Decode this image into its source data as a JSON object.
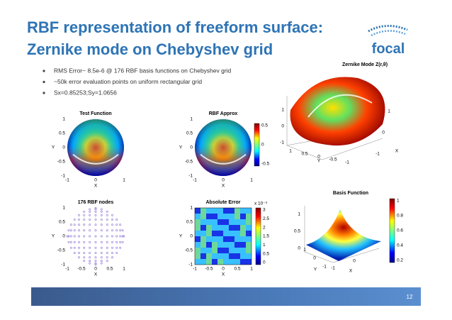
{
  "header": {
    "title_lines": [
      "RBF representation of freeform surface:",
      "Zernike mode on Chebyshev grid"
    ],
    "logo": "focal"
  },
  "bullets": [
    "RMS Error~ 8.5e-6 @ 176  RBF basis functions on Chebyshev  grid",
    "~50k error evaluation points on uniform rectangular  grid",
    "Sx=0.85253;Sy=1.0656"
  ],
  "panels": [
    {
      "kind": "disk",
      "title": "Test Function",
      "xlabel": "X",
      "ylabel": "Y",
      "xticks": [
        "-1",
        "0",
        "1"
      ],
      "yticks": [
        "1",
        "0.5",
        "0",
        "-0.5",
        "-1"
      ]
    },
    {
      "kind": "disk",
      "title": "RBF Approx",
      "xlabel": "X",
      "ylabel": "Y",
      "xticks": [
        "-1",
        "0",
        "1"
      ],
      "yticks": [
        "1",
        "0.5",
        "0",
        "-0.5",
        "-1"
      ],
      "cbar_ticks": [
        "0.5",
        "0",
        "-0.5"
      ]
    },
    {
      "kind": "surface3d",
      "title": "Zernike Mode Z(r,θ)",
      "xlabel": "X",
      "ylabel": "Y",
      "zticks": [
        "1",
        "0",
        "-1"
      ],
      "yticks": [
        "1",
        "0.5",
        "0",
        "-0.5",
        "-1"
      ],
      "xticks": [
        "-1",
        "0",
        "1"
      ]
    },
    {
      "kind": "nodes",
      "title": "176 RBF nodes",
      "xlabel": "X",
      "ylabel": "Y",
      "xticks": [
        "-1",
        "-0.5",
        "0",
        "0.5",
        "1"
      ],
      "yticks": [
        "1",
        "0.5",
        "0",
        "-0.5",
        "-1"
      ]
    },
    {
      "kind": "error",
      "title": "Absolute Error",
      "xlabel": "X",
      "ylabel": "Y",
      "xticks": [
        "-1",
        "-0.5",
        "0",
        "0.5",
        "1"
      ],
      "yticks": [
        "1",
        "0.5",
        "0",
        "-0.5",
        "-1"
      ],
      "cbar_exponent": "x 10⁻³",
      "cbar_ticks": [
        "3",
        "2.5",
        "2",
        "1.5",
        "1",
        "0.5",
        "0"
      ]
    },
    {
      "kind": "bump3d",
      "title": "Basis Function",
      "xlabel": "X",
      "ylabel": "Y",
      "zticks": [
        "1",
        "0.5",
        "0"
      ],
      "yticks": [
        "1",
        "0",
        "-1"
      ],
      "xticks": [
        "-1",
        "0"
      ],
      "cbar_ticks": [
        "1",
        "0.8",
        "0.6",
        "0.4",
        "0.2"
      ]
    }
  ],
  "footer": {
    "page": "12"
  }
}
